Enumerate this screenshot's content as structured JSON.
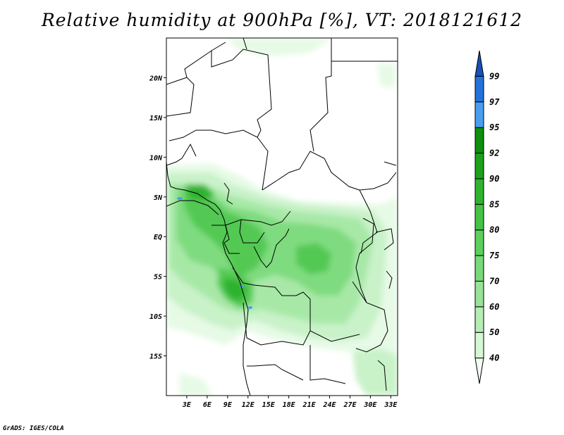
{
  "title": "Relative humidity at 900hPa [%], VT: 2018121612",
  "credit": "GrADS: IGES/COLA",
  "map": {
    "lon_range": [
      0,
      34
    ],
    "lat_range": [
      -20,
      25
    ],
    "lon_ticks": [
      "3E",
      "6E",
      "9E",
      "12E",
      "15E",
      "18E",
      "21E",
      "24E",
      "27E",
      "30E",
      "33E"
    ],
    "lat_ticks": [
      "20N",
      "15N",
      "10N",
      "5N",
      "EQ",
      "5S",
      "10S",
      "15S"
    ]
  },
  "colorbar": {
    "levels": [
      "40",
      "50",
      "60",
      "70",
      "75",
      "80",
      "85",
      "90",
      "92",
      "95",
      "97",
      "99"
    ],
    "colors": [
      "#f0fff0",
      "#d6f7d6",
      "#b6edb6",
      "#97e397",
      "#78d978",
      "#5ccf5c",
      "#44c444",
      "#2fb32f",
      "#1da11d",
      "#0e8f0e",
      "#4a9ef0",
      "#2472db",
      "#1650b8"
    ]
  }
}
